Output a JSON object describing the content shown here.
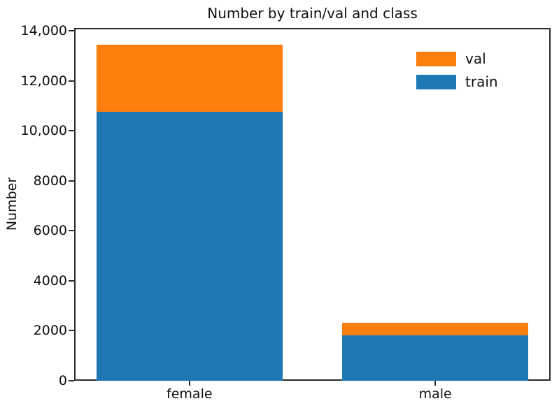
{
  "chart_data": {
    "type": "bar",
    "stacked": true,
    "title": "Number by train/val and class",
    "xlabel": "",
    "ylabel": "Number",
    "categories": [
      "female",
      "male"
    ],
    "series": [
      {
        "name": "train",
        "color": "#1f77b4",
        "values": [
          10770,
          1830
        ]
      },
      {
        "name": "val",
        "color": "#ff7f0e",
        "values": [
          2680,
          480
        ]
      }
    ],
    "stack_totals": [
      13450,
      2310
    ],
    "ylim": [
      0,
      14120
    ],
    "yticks": {
      "values": [
        0,
        2000,
        4000,
        6000,
        8000,
        10000,
        12000,
        14000
      ],
      "labels": [
        "0",
        "2000",
        "4000",
        "6000",
        "8000",
        "10,000",
        "12,000",
        "14,000"
      ]
    },
    "legend": {
      "entries": [
        "val",
        "train"
      ],
      "position": "upper right",
      "frame": false
    },
    "grid": false,
    "axis_color": "#2b2b2b",
    "background_color": "#ffffff"
  }
}
